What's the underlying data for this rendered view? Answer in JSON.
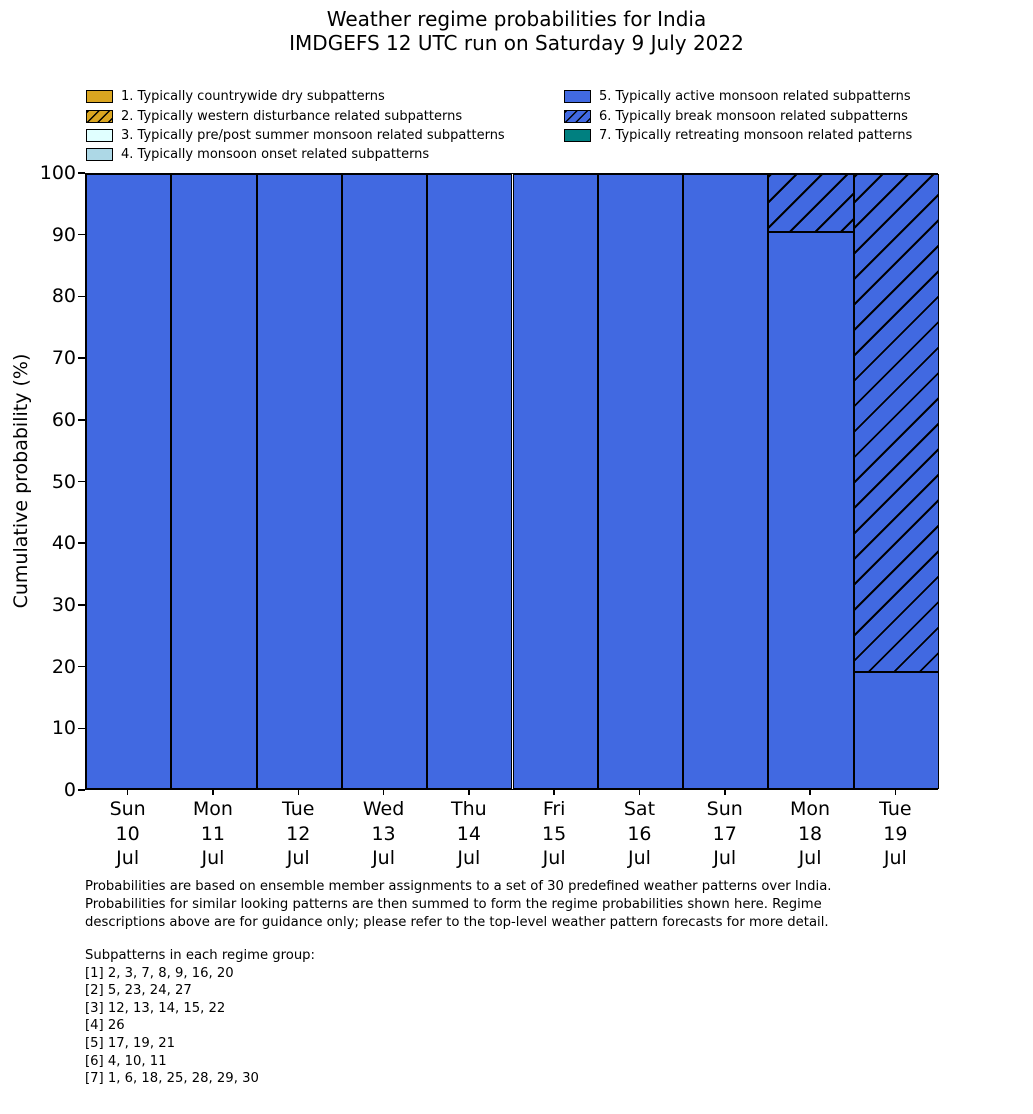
{
  "title": {
    "line1": "Weather regime probabilities for India",
    "line2": "IMDGEFS 12 UTC run on Saturday 9 July 2022"
  },
  "legend": {
    "items": [
      {
        "label": "1. Typically countrywide dry subpatterns",
        "color": "#DAA520",
        "hatch": false,
        "column": "left"
      },
      {
        "label": "2. Typically western disturbance related subpatterns",
        "color": "#DAA520",
        "hatch": true,
        "column": "left"
      },
      {
        "label": "3. Typically pre/post summer monsoon related subpatterns",
        "color": "#E0FFFF",
        "hatch": false,
        "column": "left"
      },
      {
        "label": "4. Typically monsoon onset related subpatterns",
        "color": "#ADD8E6",
        "hatch": false,
        "column": "left"
      },
      {
        "label": "5. Typically active monsoon related subpatterns",
        "color": "#4169E1",
        "hatch": false,
        "column": "right"
      },
      {
        "label": "6. Typically break monsoon related subpatterns",
        "color": "#4169E1",
        "hatch": true,
        "column": "right"
      },
      {
        "label": "7. Typically retreating monsoon related patterns",
        "color": "#008080",
        "hatch": false,
        "column": "right"
      }
    ]
  },
  "chart_data": {
    "type": "stacked_bar",
    "title": "Weather regime probabilities for India — IMDGEFS 12 UTC run on Saturday 9 July 2022",
    "xlabel": "",
    "ylabel": "Cumulative probability (%)",
    "ylim": [
      0,
      100
    ],
    "yticks": [
      0,
      10,
      20,
      30,
      40,
      50,
      60,
      70,
      80,
      90,
      100
    ],
    "grid": false,
    "legend_position": "above",
    "bar_edge_color": "#000000",
    "categories": [
      [
        "Sun",
        "10",
        "Jul"
      ],
      [
        "Mon",
        "11",
        "Jul"
      ],
      [
        "Tue",
        "12",
        "Jul"
      ],
      [
        "Wed",
        "13",
        "Jul"
      ],
      [
        "Thu",
        "14",
        "Jul"
      ],
      [
        "Fri",
        "15",
        "Jul"
      ],
      [
        "Sat",
        "16",
        "Jul"
      ],
      [
        "Sun",
        "17",
        "Jul"
      ],
      [
        "Mon",
        "18",
        "Jul"
      ],
      [
        "Tue",
        "19",
        "Jul"
      ]
    ],
    "series": [
      {
        "name": "1. Typically countrywide dry subpatterns",
        "color": "#DAA520",
        "hatch": false,
        "values": [
          0,
          0,
          0,
          0,
          0,
          0,
          0,
          0,
          0,
          0
        ]
      },
      {
        "name": "2. Typically western disturbance related subpatterns",
        "color": "#DAA520",
        "hatch": true,
        "values": [
          0,
          0,
          0,
          0,
          0,
          0,
          0,
          0,
          0,
          0
        ]
      },
      {
        "name": "3. Typically pre/post summer monsoon related subpatterns",
        "color": "#E0FFFF",
        "hatch": false,
        "values": [
          0,
          0,
          0,
          0,
          0,
          0,
          0,
          0,
          0,
          0
        ]
      },
      {
        "name": "4. Typically monsoon onset related subpatterns",
        "color": "#ADD8E6",
        "hatch": false,
        "values": [
          0,
          0,
          0,
          0,
          0,
          0,
          0,
          0,
          0,
          0
        ]
      },
      {
        "name": "5. Typically active monsoon related subpatterns",
        "color": "#4169E1",
        "hatch": false,
        "values": [
          100,
          100,
          100,
          100,
          100,
          100,
          100,
          100,
          90.5,
          19
        ]
      },
      {
        "name": "6. Typically break monsoon related subpatterns",
        "color": "#4169E1",
        "hatch": true,
        "values": [
          0,
          0,
          0,
          0,
          0,
          0,
          0,
          0,
          9.5,
          81
        ]
      },
      {
        "name": "7. Typically retreating monsoon related patterns",
        "color": "#008080",
        "hatch": false,
        "values": [
          0,
          0,
          0,
          0,
          0,
          0,
          0,
          0,
          0,
          0
        ]
      }
    ]
  },
  "footnote": {
    "lines": [
      "Probabilities are based on ensemble member assignments to a set of 30 predefined weather patterns over India.",
      "Probabilities for similar looking patterns are then summed to form the regime probabilities shown here. Regime",
      "descriptions above are for guidance only; please refer to the top-level weather pattern forecasts for more detail."
    ]
  },
  "subpatterns": {
    "header": "Subpatterns in each regime group:",
    "groups": [
      "[1] 2, 3, 7, 8, 9, 16, 20",
      "[2] 5, 23, 24, 27",
      "[3] 12, 13, 14, 15, 22",
      "[4] 26",
      "[5] 17, 19, 21",
      "[6] 4, 10, 11",
      "[7] 1, 6, 18, 25, 28, 29, 30"
    ]
  }
}
